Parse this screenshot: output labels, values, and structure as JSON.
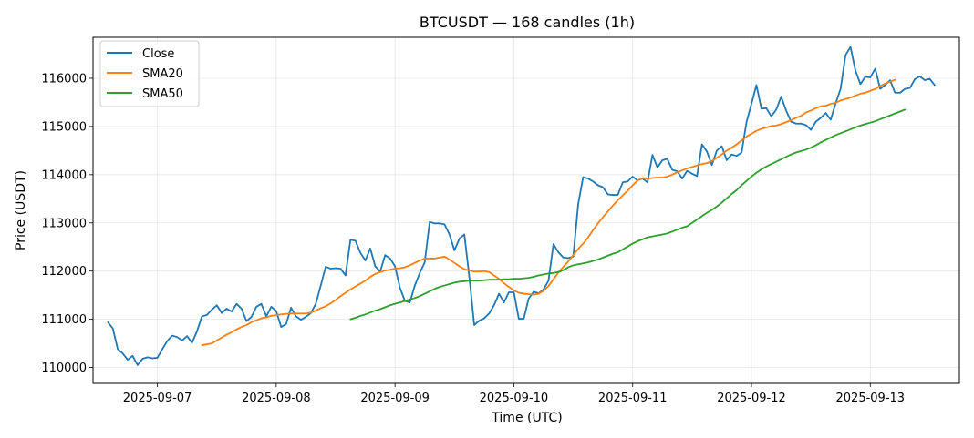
{
  "chart_data": {
    "type": "line",
    "title": "BTCUSDT — 168 candles (1h)",
    "xlabel": "Time (UTC)",
    "ylabel": "Price (USDT)",
    "x_ticks": [
      "2025-09-07",
      "2025-09-08",
      "2025-09-09",
      "2025-09-10",
      "2025-09-11",
      "2025-09-12",
      "2025-09-13"
    ],
    "x_range": [
      "2025-09-06T11:00",
      "2025-09-13T18:00"
    ],
    "y_ticks": [
      110000,
      111000,
      112000,
      113000,
      114000,
      115000,
      116000
    ],
    "ylim": [
      109670,
      116850
    ],
    "grid": true,
    "legend_position": "top-left",
    "colors": {
      "Close": "#1f77b4",
      "SMA20": "#ff7f0e",
      "SMA50": "#2ca02c"
    },
    "series": [
      {
        "name": "Close",
        "x_start": "2025-09-06T14:00",
        "step_hours": 1,
        "values": [
          110940,
          110810,
          110380,
          110290,
          110160,
          110240,
          110050,
          110180,
          110210,
          110190,
          110200,
          110380,
          110550,
          110660,
          110630,
          110560,
          110650,
          110510,
          110750,
          111060,
          111090,
          111200,
          111290,
          111130,
          111220,
          111160,
          111320,
          111220,
          110960,
          111050,
          111260,
          111320,
          111060,
          111260,
          111170,
          110840,
          110900,
          111240,
          111060,
          110990,
          111050,
          111130,
          111320,
          111700,
          112090,
          112050,
          112060,
          112050,
          111910,
          112650,
          112630,
          112380,
          112220,
          112470,
          112100,
          111990,
          112330,
          112260,
          112100,
          111650,
          111380,
          111350,
          111700,
          111960,
          112180,
          113020,
          112990,
          112990,
          112970,
          112760,
          112430,
          112670,
          112760,
          111890,
          110880,
          110970,
          111020,
          111120,
          111290,
          111530,
          111350,
          111560,
          111560,
          111010,
          111010,
          111430,
          111570,
          111540,
          111620,
          111800,
          112560,
          112390,
          112280,
          112270,
          112300,
          113390,
          113950,
          113920,
          113860,
          113780,
          113740,
          113590,
          113580,
          113580,
          113840,
          113860,
          113960,
          113880,
          113920,
          113840,
          114410,
          114150,
          114300,
          114330,
          114100,
          114070,
          113920,
          114080,
          114020,
          113970,
          114630,
          114480,
          114200,
          114500,
          114590,
          114300,
          114420,
          114390,
          114460,
          115090,
          115470,
          115860,
          115370,
          115380,
          115210,
          115350,
          115620,
          115330,
          115100,
          115060,
          115060,
          115030,
          114930,
          115100,
          115180,
          115280,
          115140,
          115480,
          115780,
          116480,
          116650,
          116160,
          115880,
          116030,
          116020,
          116200,
          115780,
          115860,
          115960,
          115700,
          115700,
          115780,
          115800,
          115980,
          116040,
          115960,
          115990,
          115860
        ]
      },
      {
        "name": "SMA20",
        "x_start": "2025-09-07T09:00",
        "step_hours": 1,
        "values": [
          110460,
          110480,
          110500,
          110560,
          110620,
          110680,
          110730,
          110790,
          110840,
          110880,
          110940,
          110980,
          111020,
          111040,
          111070,
          111090,
          111100,
          111110,
          111120,
          111120,
          111120,
          111120,
          111140,
          111180,
          111230,
          111270,
          111330,
          111400,
          111480,
          111550,
          111620,
          111680,
          111740,
          111800,
          111880,
          111940,
          111980,
          112010,
          112030,
          112050,
          112060,
          112080,
          112120,
          112170,
          112220,
          112260,
          112260,
          112260,
          112280,
          112300,
          112240,
          112170,
          112100,
          112040,
          112010,
          111990,
          111990,
          112000,
          111980,
          111910,
          111840,
          111750,
          111670,
          111600,
          111550,
          111530,
          111520,
          111510,
          111530,
          111590,
          111690,
          111830,
          111970,
          112090,
          112200,
          112330,
          112460,
          112570,
          112700,
          112850,
          112990,
          113120,
          113240,
          113360,
          113470,
          113570,
          113670,
          113780,
          113880,
          113930,
          113920,
          113930,
          113940,
          113940,
          113960,
          114000,
          114050,
          114090,
          114130,
          114160,
          114190,
          114220,
          114240,
          114280,
          114350,
          114420,
          114500,
          114560,
          114630,
          114710,
          114790,
          114850,
          114910,
          114950,
          114980,
          115010,
          115020,
          115050,
          115090,
          115130,
          115180,
          115220,
          115290,
          115330,
          115380,
          115420,
          115430,
          115470,
          115490,
          115540,
          115570,
          115600,
          115640,
          115680,
          115700,
          115740,
          115780,
          115840,
          115890,
          115930,
          115970
        ]
      },
      {
        "name": "SMA50",
        "x_start": "2025-09-08T15:00",
        "step_hours": 1,
        "values": [
          111000,
          111030,
          111070,
          111100,
          111140,
          111180,
          111210,
          111250,
          111290,
          111320,
          111350,
          111380,
          111410,
          111440,
          111480,
          111530,
          111580,
          111630,
          111670,
          111700,
          111730,
          111760,
          111780,
          111790,
          111800,
          111800,
          111800,
          111810,
          111820,
          111820,
          111820,
          111830,
          111830,
          111840,
          111840,
          111850,
          111860,
          111880,
          111910,
          111930,
          111950,
          111960,
          111980,
          112020,
          112080,
          112120,
          112140,
          112160,
          112180,
          112210,
          112240,
          112280,
          112320,
          112360,
          112390,
          112450,
          112510,
          112570,
          112620,
          112660,
          112700,
          112720,
          112740,
          112760,
          112780,
          112820,
          112860,
          112900,
          112930,
          113000,
          113070,
          113140,
          113210,
          113270,
          113340,
          113420,
          113510,
          113600,
          113680,
          113780,
          113870,
          113960,
          114040,
          114110,
          114170,
          114220,
          114270,
          114320,
          114370,
          114420,
          114460,
          114490,
          114520,
          114560,
          114610,
          114670,
          114720,
          114770,
          114820,
          114860,
          114900,
          114940,
          114980,
          115020,
          115050,
          115080,
          115110,
          115150,
          115190,
          115230,
          115270,
          115310,
          115350
        ]
      }
    ]
  }
}
